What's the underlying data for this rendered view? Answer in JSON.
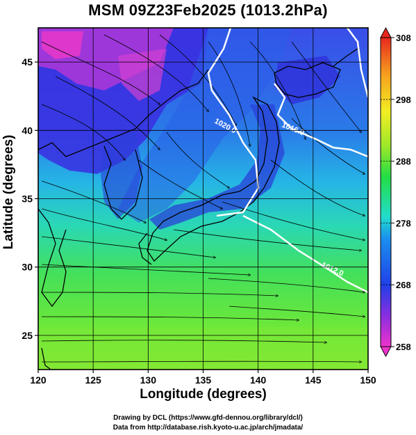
{
  "title": "MSM 09Z23Feb2025 (1013.2hPa)",
  "axes": {
    "xlabel": "Longitude (degrees)",
    "ylabel": "Latitude  (degrees)",
    "xticks": [
      "120",
      "125",
      "130",
      "135",
      "140",
      "145",
      "150"
    ],
    "yticks": [
      "25",
      "30",
      "35",
      "40",
      "45"
    ],
    "xlim": [
      120,
      150
    ],
    "ylim": [
      22.5,
      47.5
    ]
  },
  "colorbar": {
    "ticks": [
      "258",
      "268",
      "278",
      "288",
      "298",
      "308"
    ],
    "range": [
      258,
      308
    ],
    "colors": [
      "#ee33cc",
      "#7a2ee6",
      "#2040e8",
      "#1aa0ee",
      "#22e0b0",
      "#22dd33",
      "#9ee82a",
      "#f2ee22",
      "#f6a01e",
      "#e8281e"
    ]
  },
  "contours": [
    {
      "label": "1020.0"
    },
    {
      "label": "1016.0"
    },
    {
      "label": "1012.0"
    }
  ],
  "credits": {
    "line1": "Drawing by DCL (https://www.gfd-dennou.org/library/dcl/)",
    "line2": "Data from http://database.rish.kyoto-u.ac.jp/arch/jmadata/"
  }
}
